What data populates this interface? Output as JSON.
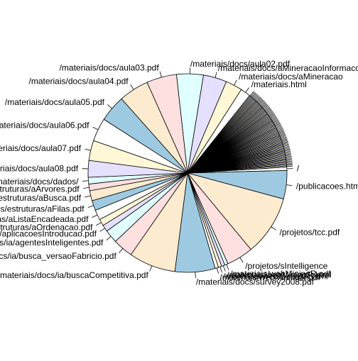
{
  "chart_data": {
    "type": "pie",
    "title": "",
    "palette": [
      "#ffffff",
      "#9ecae1",
      "#fdebd0",
      "#ffe0e0",
      "#e0ffff",
      "#e6e0ff",
      "#fff7d6"
    ],
    "labels": [
      "/",
      "/publicacoes.html",
      "/projetos/tcc.pdf",
      "/projetos/sIntelligence",
      "/materiais/webMiningR.pdf",
      "/materiais/webMiningR.html",
      "/materiais/webMiningR.html",
      "/materiais/webMiningR.pdf",
      "/materiais/docs/survey2008.pdf",
      "/materiais/docs/ia/buscaCompetitiva.pdf",
      "/materiais/docs/ia/busca_versaoFabricio.pdf",
      "/materiais/docs/ia/agentesInteligentes.pdf",
      "/materiais/docs/ia/aplicacoesIntroducao.pdf",
      "/docs/estruturas/aOrdenacao.pdf",
      "/docs/estruturas/aListaEncadeada.pdf",
      "/docs/estruturas/aFilas.pdf",
      "/docs/estruturas/aBusca.pdf",
      "/docs/estruturas/aArvores.pdf",
      "/materiais/docs/dados/",
      "/materiais/docs/aula08.pdf",
      "/materiais/docs/aula07.pdf",
      "/materiais/docs/aula06.pdf",
      "/materiais/docs/aula05.pdf",
      "/materiais/docs/aula04.pdf",
      "/materiais/docs/aula03.pdf",
      "/materiais/docs/aula02.pdf",
      "/materiais/docs/aMineracaoInformacoesSemana2012.pdf",
      "/materiais/docs/aMineracao",
      "/materiais.html"
    ],
    "values": [
      1,
      8.5,
      18,
      8,
      1,
      1,
      1,
      1,
      12,
      14,
      6,
      4,
      2,
      2,
      3,
      3,
      3,
      2,
      2,
      5,
      6,
      7,
      8,
      9,
      9,
      8,
      7,
      5,
      3
    ],
    "minor_slices": 70
  }
}
